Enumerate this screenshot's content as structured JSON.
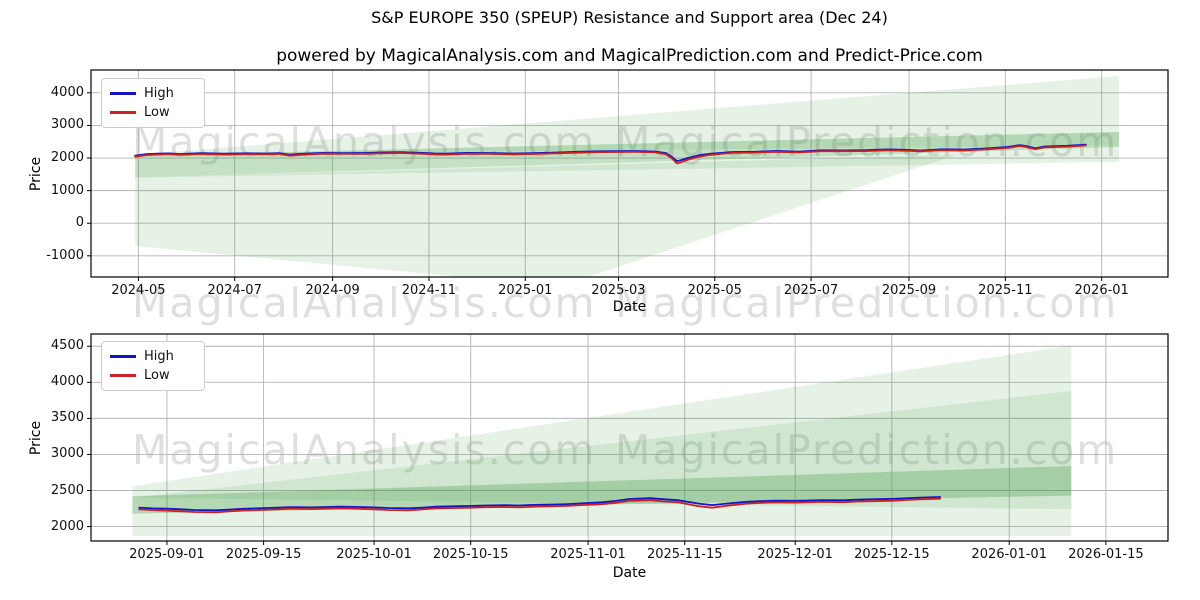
{
  "figure": {
    "title": "S&P EUROPE 350 (SPEUP) Resistance and Support area (Dec 24)",
    "subtitle": "powered by MagicalAnalysis.com and MagicalPrediction.com and Predict-Price.com",
    "watermark_left": "MagicalAnalysis.com",
    "watermark_right": "MagicalPrediction.com"
  },
  "colors": {
    "high": "#1515c8",
    "low": "#cc2222",
    "area_green": "#3f9b3f",
    "grid": "#b3b3b3",
    "spine": "#000000",
    "background": "#ffffff"
  },
  "chart_data": [
    {
      "type": "line",
      "xlabel": "Date",
      "ylabel": "Price",
      "grid": true,
      "legend": {
        "position": "upper-left",
        "entries": [
          "High",
          "Low"
        ]
      },
      "x_domain": [
        "2024-04-01",
        "2026-02-12"
      ],
      "ylim": [
        -1650,
        4700
      ],
      "yticks": [
        -1000,
        0,
        1000,
        2000,
        3000,
        4000
      ],
      "xticks": [
        {
          "date": "2024-05-01",
          "label": "2024-05"
        },
        {
          "date": "2024-07-01",
          "label": "2024-07"
        },
        {
          "date": "2024-09-01",
          "label": "2024-09"
        },
        {
          "date": "2024-11-01",
          "label": "2024-11"
        },
        {
          "date": "2025-01-01",
          "label": "2025-01"
        },
        {
          "date": "2025-03-01",
          "label": "2025-03"
        },
        {
          "date": "2025-05-01",
          "label": "2025-05"
        },
        {
          "date": "2025-07-01",
          "label": "2025-07"
        },
        {
          "date": "2025-09-01",
          "label": "2025-09"
        },
        {
          "date": "2025-11-01",
          "label": "2025-11"
        },
        {
          "date": "2026-01-01",
          "label": "2026-01"
        }
      ],
      "x_dates": [
        "2024-04-29",
        "2024-05-06",
        "2024-05-13",
        "2024-05-20",
        "2024-05-27",
        "2024-06-10",
        "2024-06-24",
        "2024-07-08",
        "2024-07-22",
        "2024-07-29",
        "2024-08-05",
        "2024-08-12",
        "2024-08-26",
        "2024-09-09",
        "2024-09-23",
        "2024-09-30",
        "2024-10-14",
        "2024-10-28",
        "2024-11-04",
        "2024-11-11",
        "2024-11-25",
        "2024-12-09",
        "2024-12-23",
        "2025-01-06",
        "2025-01-20",
        "2025-02-03",
        "2025-02-17",
        "2025-03-03",
        "2025-03-10",
        "2025-03-24",
        "2025-03-31",
        "2025-04-04",
        "2025-04-07",
        "2025-04-10",
        "2025-04-14",
        "2025-04-21",
        "2025-04-28",
        "2025-05-12",
        "2025-05-26",
        "2025-06-09",
        "2025-06-23",
        "2025-07-07",
        "2025-07-21",
        "2025-08-04",
        "2025-08-18",
        "2025-09-01",
        "2025-09-08",
        "2025-09-22",
        "2025-10-06",
        "2025-10-20",
        "2025-11-03",
        "2025-11-10",
        "2025-11-14",
        "2025-11-20",
        "2025-11-26",
        "2025-12-03",
        "2025-12-10",
        "2025-12-17",
        "2025-12-22"
      ],
      "series": [
        {
          "name": "High",
          "color": "#1515c8",
          "values": [
            2072,
            2116,
            2132,
            2142,
            2124,
            2148,
            2132,
            2146,
            2140,
            2152,
            2102,
            2128,
            2158,
            2152,
            2156,
            2168,
            2182,
            2156,
            2142,
            2134,
            2156,
            2154,
            2140,
            2148,
            2170,
            2190,
            2206,
            2212,
            2216,
            2200,
            2155,
            2030,
            1905,
            1940,
            2000,
            2085,
            2130,
            2186,
            2192,
            2218,
            2198,
            2236,
            2234,
            2240,
            2264,
            2250,
            2232,
            2268,
            2260,
            2294,
            2340,
            2396,
            2368,
            2300,
            2352,
            2364,
            2374,
            2394,
            2412
          ]
        },
        {
          "name": "Low",
          "color": "#cc2222",
          "values": [
            2040,
            2088,
            2106,
            2116,
            2096,
            2120,
            2104,
            2118,
            2112,
            2126,
            2070,
            2100,
            2132,
            2126,
            2130,
            2142,
            2154,
            2128,
            2112,
            2104,
            2130,
            2128,
            2112,
            2122,
            2144,
            2164,
            2180,
            2186,
            2190,
            2172,
            2120,
            1978,
            1835,
            1876,
            1945,
            2040,
            2096,
            2158,
            2166,
            2192,
            2170,
            2210,
            2208,
            2212,
            2238,
            2222,
            2205,
            2242,
            2232,
            2268,
            2312,
            2368,
            2338,
            2268,
            2325,
            2338,
            2348,
            2368,
            2388
          ]
        }
      ],
      "areas": [
        {
          "name": "support-deep-left",
          "opacity": 0.13,
          "points": [
            [
              "2024-04-29",
              1400
            ],
            [
              "2024-04-29",
              -700
            ],
            [
              "2024-11-20",
              -1640
            ],
            [
              "2025-02-10",
              -1640
            ],
            [
              "2025-10-01",
              2100
            ]
          ]
        },
        {
          "name": "support-under-strip",
          "opacity": 0.13,
          "points": [
            [
              "2024-04-29",
              1400
            ],
            [
              "2026-01-12",
              2360
            ],
            [
              "2026-01-12",
              1880
            ]
          ]
        },
        {
          "name": "resistance-cone-upper",
          "opacity": 0.13,
          "points": [
            [
              "2024-04-29",
              2100
            ],
            [
              "2026-01-12",
              4520
            ],
            [
              "2026-01-12",
              2380
            ]
          ]
        },
        {
          "name": "trend-band",
          "opacity": 0.3,
          "points": [
            [
              "2024-04-29",
              2070
            ],
            [
              "2024-04-29",
              1400
            ],
            [
              "2026-01-12",
              2340
            ],
            [
              "2026-01-12",
              2800
            ]
          ]
        }
      ]
    },
    {
      "type": "line",
      "xlabel": "Date",
      "ylabel": "Price",
      "grid": true,
      "legend": {
        "position": "upper-left",
        "entries": [
          "High",
          "Low"
        ]
      },
      "x_domain": [
        "2025-08-21",
        "2026-01-24"
      ],
      "ylim": [
        1800,
        4670
      ],
      "yticks": [
        2000,
        2500,
        3000,
        3500,
        4000,
        4500
      ],
      "xticks": [
        {
          "date": "2025-09-01",
          "label": "2025-09-01"
        },
        {
          "date": "2025-09-15",
          "label": "2025-09-15"
        },
        {
          "date": "2025-10-01",
          "label": "2025-10-01"
        },
        {
          "date": "2025-10-15",
          "label": "2025-10-15"
        },
        {
          "date": "2025-11-01",
          "label": "2025-11-01"
        },
        {
          "date": "2025-11-15",
          "label": "2025-11-15"
        },
        {
          "date": "2025-12-01",
          "label": "2025-12-01"
        },
        {
          "date": "2025-12-15",
          "label": "2025-12-15"
        },
        {
          "date": "2026-01-01",
          "label": "2026-01-01"
        },
        {
          "date": "2026-01-15",
          "label": "2026-01-15"
        }
      ],
      "x_dates": [
        "2025-08-28",
        "2025-08-30",
        "2025-09-01",
        "2025-09-03",
        "2025-09-05",
        "2025-09-08",
        "2025-09-10",
        "2025-09-12",
        "2025-09-15",
        "2025-09-17",
        "2025-09-19",
        "2025-09-22",
        "2025-09-24",
        "2025-09-26",
        "2025-09-29",
        "2025-10-01",
        "2025-10-03",
        "2025-10-06",
        "2025-10-08",
        "2025-10-10",
        "2025-10-13",
        "2025-10-15",
        "2025-10-17",
        "2025-10-20",
        "2025-10-22",
        "2025-10-24",
        "2025-10-27",
        "2025-10-29",
        "2025-10-31",
        "2025-11-03",
        "2025-11-05",
        "2025-11-07",
        "2025-11-10",
        "2025-11-12",
        "2025-11-14",
        "2025-11-17",
        "2025-11-19",
        "2025-11-21",
        "2025-11-24",
        "2025-11-26",
        "2025-11-28",
        "2025-12-01",
        "2025-12-03",
        "2025-12-05",
        "2025-12-08",
        "2025-12-10",
        "2025-12-12",
        "2025-12-15",
        "2025-12-17",
        "2025-12-19",
        "2025-12-22"
      ],
      "series": [
        {
          "name": "High",
          "color": "#1515c8",
          "values": [
            2262,
            2252,
            2248,
            2240,
            2230,
            2226,
            2236,
            2246,
            2256,
            2262,
            2270,
            2266,
            2272,
            2276,
            2272,
            2266,
            2258,
            2254,
            2262,
            2276,
            2282,
            2286,
            2292,
            2296,
            2292,
            2300,
            2306,
            2312,
            2322,
            2336,
            2356,
            2382,
            2394,
            2378,
            2366,
            2318,
            2298,
            2318,
            2344,
            2352,
            2360,
            2358,
            2362,
            2366,
            2364,
            2372,
            2378,
            2384,
            2392,
            2402,
            2410
          ]
        },
        {
          "name": "Low",
          "color": "#cc2222",
          "values": [
            2238,
            2228,
            2222,
            2212,
            2202,
            2196,
            2210,
            2222,
            2232,
            2238,
            2248,
            2242,
            2248,
            2252,
            2246,
            2240,
            2230,
            2226,
            2238,
            2252,
            2258,
            2262,
            2268,
            2272,
            2266,
            2276,
            2282,
            2288,
            2298,
            2310,
            2330,
            2356,
            2366,
            2348,
            2336,
            2282,
            2262,
            2288,
            2318,
            2328,
            2336,
            2332,
            2338,
            2342,
            2338,
            2348,
            2352,
            2358,
            2368,
            2378,
            2386
          ]
        }
      ],
      "areas": [
        {
          "name": "resistance-cone-outer",
          "opacity": 0.13,
          "points": [
            [
              "2025-08-27",
              2560
            ],
            [
              "2026-01-10",
              4510
            ],
            [
              "2026-01-10",
              1870
            ],
            [
              "2025-08-27",
              1870
            ]
          ]
        },
        {
          "name": "resistance-cone-inner",
          "opacity": 0.13,
          "points": [
            [
              "2025-08-27",
              2400
            ],
            [
              "2026-01-10",
              3880
            ],
            [
              "2026-01-10",
              2240
            ]
          ]
        },
        {
          "name": "trend-band",
          "opacity": 0.3,
          "points": [
            [
              "2025-08-27",
              2420
            ],
            [
              "2025-08-27",
              2180
            ],
            [
              "2026-01-10",
              2430
            ],
            [
              "2026-01-10",
              2840
            ]
          ]
        }
      ]
    }
  ]
}
